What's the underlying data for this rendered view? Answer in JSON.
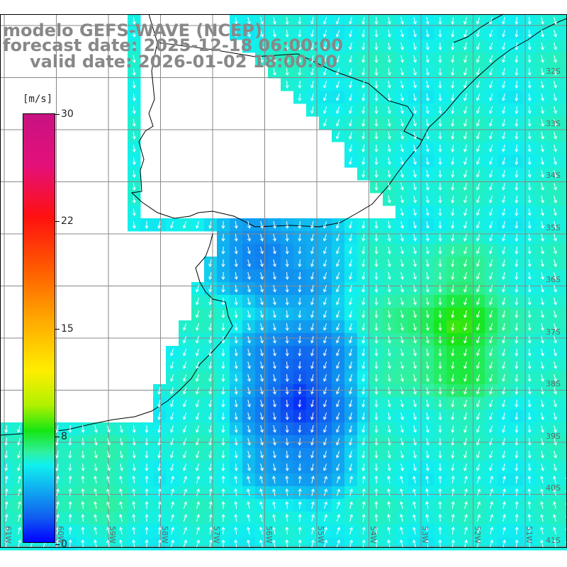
{
  "title": {
    "line1": "modelo GEFS-WAVE (NCEP)",
    "line2": "forecast date: 2025-12-18 06:00:00",
    "line3": "valid date: 2026-01-02 18:00:00"
  },
  "colorbar": {
    "unit": "[m/s]",
    "ticks": [
      "30",
      "22",
      "15",
      "8",
      "0"
    ]
  },
  "latitude_labels": [
    "32S",
    "33S",
    "34S",
    "35S",
    "36S",
    "37S",
    "38S",
    "39S",
    "40S",
    "41S"
  ],
  "longitude_labels": [
    "61W",
    "60W",
    "59W",
    "58W",
    "57W",
    "56W",
    "55W",
    "54W",
    "53W",
    "52W",
    "51W"
  ],
  "colors": {
    "land": "#ffffff",
    "grid": "#888888",
    "coast": "#000000",
    "arrow": "#ffffff",
    "title": "#888888"
  }
}
